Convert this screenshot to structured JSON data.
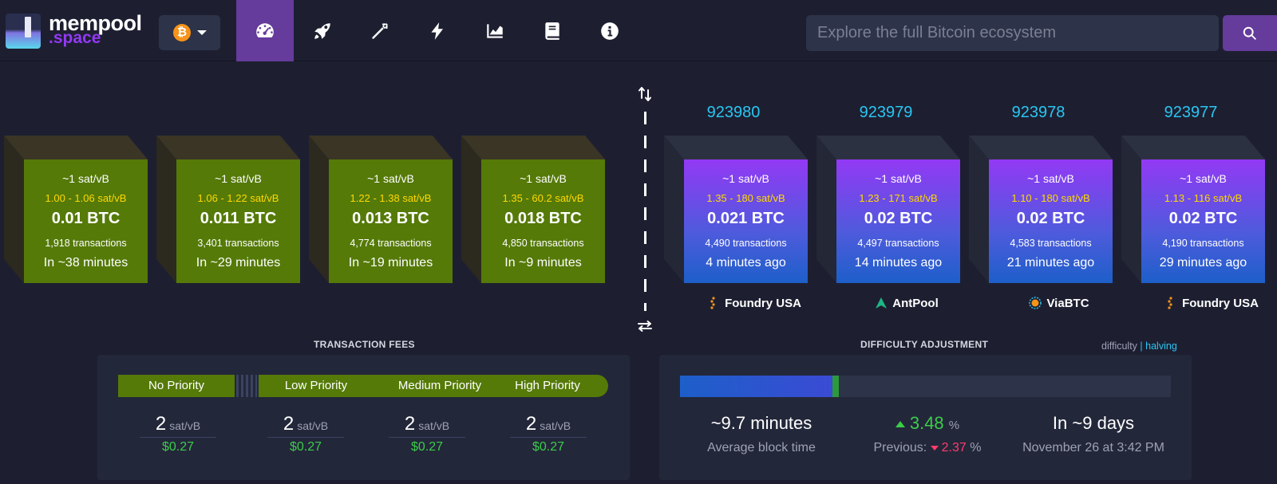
{
  "header": {
    "logo_line1": "mempool",
    "logo_line2": ".space",
    "network_icon": "bitcoin-icon",
    "search_placeholder": "Explore the full Bitcoin ecosystem",
    "nav": [
      "dashboard-icon",
      "rocket-icon",
      "pickaxe-icon",
      "lightning-icon",
      "chart-icon",
      "book-icon",
      "info-icon"
    ]
  },
  "mempool_blocks": [
    {
      "median": "~1 sat/vB",
      "range": "1.00 - 1.06 sat/vB",
      "amount": "0.01 BTC",
      "txs": "1,918 transactions",
      "eta": "In ~38 minutes"
    },
    {
      "median": "~1 sat/vB",
      "range": "1.06 - 1.22 sat/vB",
      "amount": "0.011 BTC",
      "txs": "3,401 transactions",
      "eta": "In ~29 minutes"
    },
    {
      "median": "~1 sat/vB",
      "range": "1.22 - 1.38 sat/vB",
      "amount": "0.013 BTC",
      "txs": "4,774 transactions",
      "eta": "In ~19 minutes"
    },
    {
      "median": "~1 sat/vB",
      "range": "1.35 - 60.2 sat/vB",
      "amount": "0.018 BTC",
      "txs": "4,850 transactions",
      "eta": "In ~9 minutes"
    }
  ],
  "mined_blocks": [
    {
      "height": "923980",
      "median": "~1 sat/vB",
      "range": "1.35 - 180 sat/vB",
      "amount": "0.021 BTC",
      "txs": "4,490 transactions",
      "age": "4 minutes ago",
      "pool": "Foundry USA"
    },
    {
      "height": "923979",
      "median": "~1 sat/vB",
      "range": "1.23 - 171 sat/vB",
      "amount": "0.02 BTC",
      "txs": "4,497 transactions",
      "age": "14 minutes ago",
      "pool": "AntPool"
    },
    {
      "height": "923978",
      "median": "~1 sat/vB",
      "range": "1.10 - 180 sat/vB",
      "amount": "0.02 BTC",
      "txs": "4,583 transactions",
      "age": "21 minutes ago",
      "pool": "ViaBTC"
    },
    {
      "height": "923977",
      "median": "~1 sat/vB",
      "range": "1.13 - 116 sat/vB",
      "amount": "0.02 BTC",
      "txs": "4,190 transactions",
      "age": "29 minutes ago",
      "pool": "Foundry USA"
    }
  ],
  "fees": {
    "title": "TRANSACTION FEES",
    "tiers": [
      {
        "label": "No Priority",
        "value": "2",
        "unit": "sat/vB",
        "usd": "$0.27"
      },
      {
        "label": "Low Priority",
        "value": "2",
        "unit": "sat/vB",
        "usd": "$0.27"
      },
      {
        "label": "Medium Priority",
        "value": "2",
        "unit": "sat/vB",
        "usd": "$0.27"
      },
      {
        "label": "High Priority",
        "value": "2",
        "unit": "sat/vB",
        "usd": "$0.27"
      }
    ]
  },
  "difficulty": {
    "title": "DIFFICULTY ADJUSTMENT",
    "link_difficulty": "difficulty",
    "link_sep": "|",
    "link_halving": "halving",
    "progress_fraction": 0.32,
    "avg_block_time": "~9.7 minutes",
    "avg_block_time_label": "Average block time",
    "change_value": "3.48",
    "change_unit": "%",
    "previous_label": "Previous:",
    "previous_value": "2.37",
    "previous_unit": "%",
    "eta": "In ~9 days",
    "eta_date": "November 26 at 3:42 PM"
  },
  "colors": {
    "mempool_block": "#557a08",
    "mined_block_top": "#9339f4",
    "mined_block_bottom": "#1d5fc9",
    "height_text": "#2ac6f2",
    "fee_range": "#ffd800",
    "positive": "#3bcc49",
    "negative": "#ff3d6b"
  }
}
